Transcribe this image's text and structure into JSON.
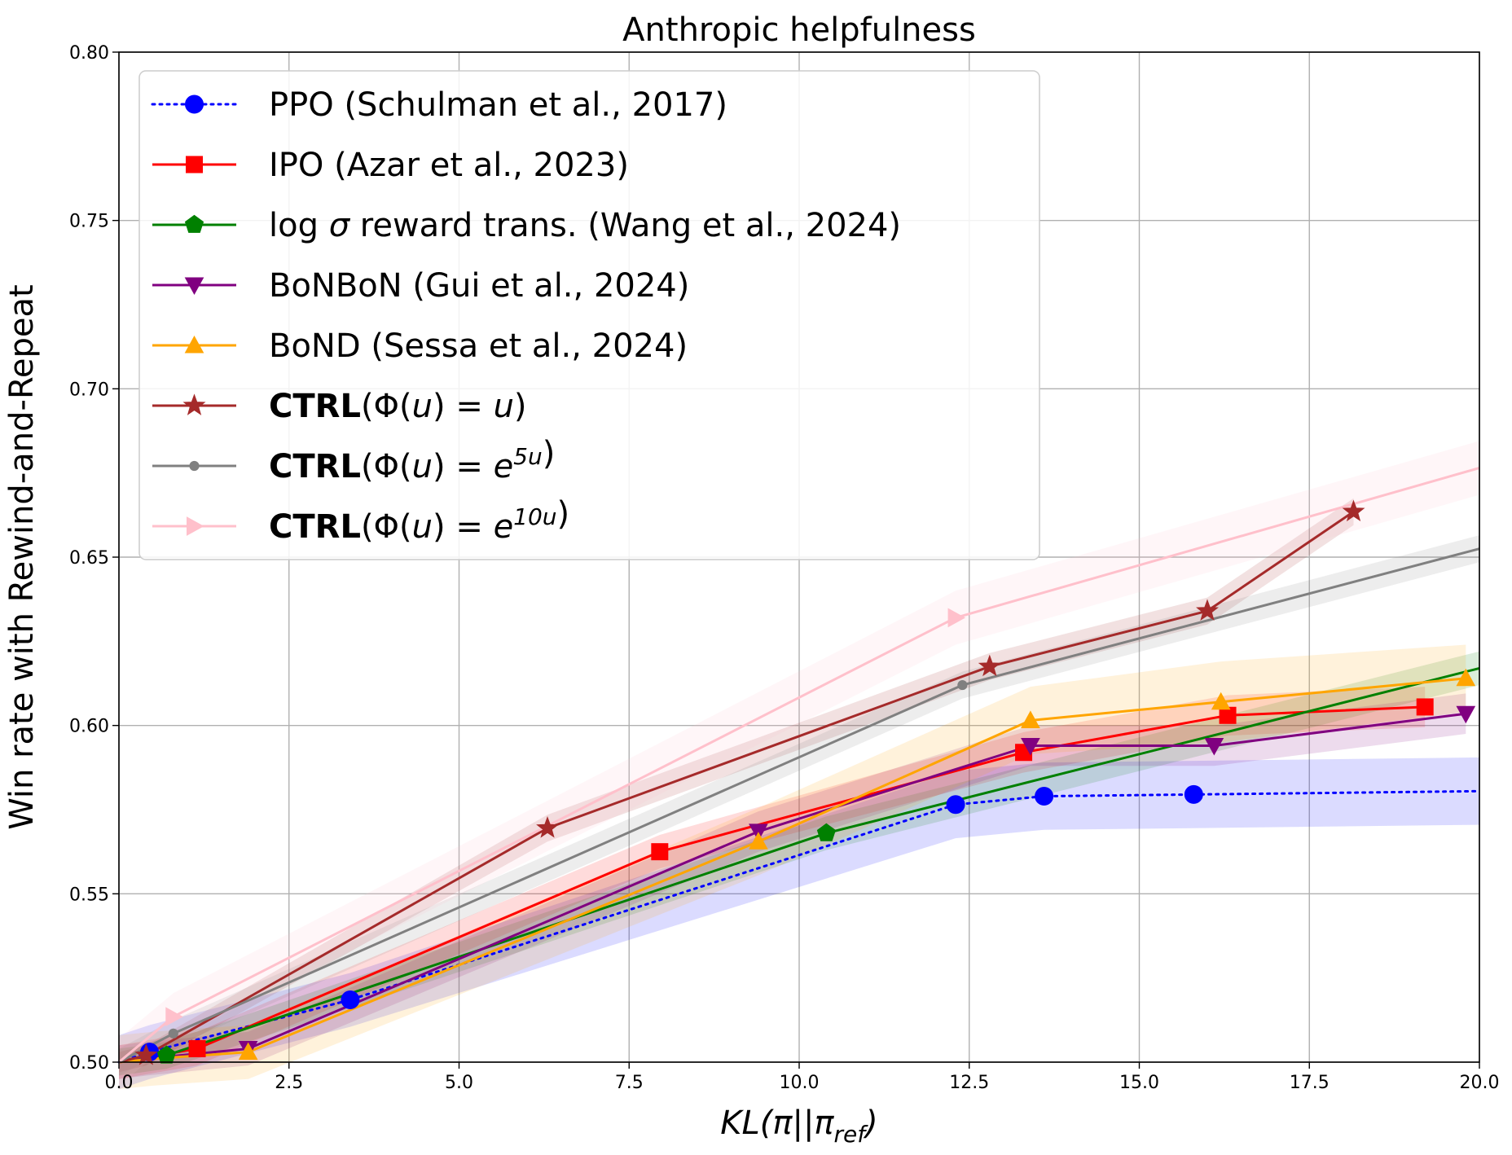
{
  "chart_data": {
    "type": "line",
    "title": "Anthropic helpfulness",
    "xlabel": "KL(π||π_ref)",
    "xlabel_main": "KL(π||π",
    "xlabel_sub": "ref",
    "xlabel_close": ")",
    "ylabel": "Win rate with Rewind-and-Repeat",
    "xlim": [
      0,
      20
    ],
    "ylim": [
      0.5,
      0.8
    ],
    "grid": true,
    "legend_position": "top-left",
    "xticks": [
      0,
      2.5,
      5,
      7.5,
      10,
      12.5,
      15,
      17.5,
      20
    ],
    "xtick_labels": [
      "0.0",
      "2.5",
      "5.0",
      "7.5",
      "10.0",
      "12.5",
      "15.0",
      "17.5",
      "20.0"
    ],
    "yticks": [
      0.5,
      0.55,
      0.6,
      0.65,
      0.7,
      0.75,
      0.8
    ],
    "ytick_labels": [
      "0.50",
      "0.55",
      "0.60",
      "0.65",
      "0.70",
      "0.75",
      "0.80"
    ],
    "series": [
      {
        "key": "ppo",
        "name": "PPO (Schulman et al., 2017)",
        "legend_parts": [
          {
            "t": "PPO (Schulman et al., 2017)"
          }
        ],
        "color": "#0000ff",
        "marker": "circle",
        "dashed": true,
        "x": [
          0,
          0.45,
          3.4,
          12.3,
          13.6,
          15.8,
          20
        ],
        "y": [
          0.5,
          0.503,
          0.5185,
          0.5765,
          0.579,
          0.5795,
          0.5805
        ],
        "band": [
          0.008,
          0.008,
          0.008,
          0.01,
          0.01,
          0.01,
          0.01
        ],
        "markers_at": [
          1,
          2,
          3,
          4,
          5
        ]
      },
      {
        "key": "ipo",
        "name": "IPO (Azar et al., 2023)",
        "legend_parts": [
          {
            "t": "IPO (Azar et al., 2023)"
          }
        ],
        "color": "#ff0000",
        "marker": "square",
        "dashed": false,
        "x": [
          0,
          1.15,
          7.95,
          13.3,
          16.3,
          19.2
        ],
        "y": [
          0.5,
          0.504,
          0.5625,
          0.592,
          0.603,
          0.6055
        ],
        "band": [
          0.005,
          0.005,
          0.005,
          0.006,
          0.006,
          0.006
        ],
        "markers_at": [
          1,
          2,
          3,
          4,
          5
        ]
      },
      {
        "key": "logsigma",
        "name": "log σ reward trans. (Wang et al., 2024)",
        "legend_parts": [
          {
            "t": "log "
          },
          {
            "t": "σ",
            "i": true
          },
          {
            "t": " reward trans. (Wang et al., 2024)"
          }
        ],
        "color": "#008000",
        "marker": "pentagon",
        "dashed": false,
        "x": [
          0,
          0.7,
          10.4,
          20
        ],
        "y": [
          0.5,
          0.502,
          0.568,
          0.617
        ],
        "band": [
          0.004,
          0.004,
          0.005,
          0.005
        ],
        "markers_at": [
          1,
          2
        ]
      },
      {
        "key": "bonbon",
        "name": "BoNBoN (Gui et al., 2024)",
        "legend_parts": [
          {
            "t": "BoNBoN (Gui et al., 2024)"
          }
        ],
        "color": "#800080",
        "marker": "triangle-down",
        "dashed": false,
        "x": [
          0,
          0.4,
          1.9,
          9.4,
          13.4,
          16.1,
          19.8
        ],
        "y": [
          0.5,
          0.501,
          0.504,
          0.5685,
          0.594,
          0.594,
          0.6035
        ],
        "band": [
          0.005,
          0.005,
          0.005,
          0.006,
          0.006,
          0.006,
          0.006
        ],
        "markers_at": [
          2,
          3,
          4,
          5,
          6
        ]
      },
      {
        "key": "bond",
        "name": "BoND (Sessa et al., 2024)",
        "legend_parts": [
          {
            "t": "BoND (Sessa et al., 2024)"
          }
        ],
        "color": "#ffa500",
        "marker": "triangle-up",
        "dashed": false,
        "x": [
          0,
          0.5,
          1.9,
          9.4,
          13.4,
          16.2,
          19.8
        ],
        "y": [
          0.5,
          0.501,
          0.503,
          0.5655,
          0.6015,
          0.607,
          0.614
        ],
        "band": [
          0.008,
          0.008,
          0.008,
          0.01,
          0.01,
          0.012,
          0.01
        ],
        "markers_at": [
          2,
          3,
          4,
          5,
          6
        ]
      },
      {
        "key": "ctrl_u",
        "name": "CTRL(Φ(u) = u)",
        "legend_parts": [
          {
            "t": "CTRL",
            "b": true
          },
          {
            "t": "(Φ("
          },
          {
            "t": "u",
            "i": true
          },
          {
            "t": ") = "
          },
          {
            "t": "u",
            "i": true
          },
          {
            "t": ")"
          }
        ],
        "color": "#a52a2a",
        "marker": "star",
        "dashed": false,
        "x": [
          0,
          0.4,
          6.3,
          12.8,
          16,
          18.15
        ],
        "y": [
          0.5,
          0.502,
          0.5695,
          0.6175,
          0.634,
          0.6635
        ],
        "band": [
          0.003,
          0.003,
          0.004,
          0.004,
          0.004,
          0.004
        ],
        "markers_at": [
          1,
          2,
          3,
          4,
          5
        ]
      },
      {
        "key": "ctrl_e5",
        "name": "CTRL(Φ(u) = e^5u)",
        "legend_parts": [
          {
            "t": "CTRL",
            "b": true
          },
          {
            "t": "(Φ("
          },
          {
            "t": "u",
            "i": true
          },
          {
            "t": ") = "
          },
          {
            "t": "e",
            "i": true
          },
          {
            "t": "5u",
            "i": true,
            "sup": true
          },
          {
            "t": ")"
          }
        ],
        "color": "#808080",
        "marker": "dot",
        "dashed": false,
        "x": [
          0,
          0.8,
          12.4,
          20
        ],
        "y": [
          0.5,
          0.5085,
          0.612,
          0.6525
        ],
        "band": [
          0.004,
          0.004,
          0.004,
          0.004
        ],
        "markers_at": [
          1,
          2
        ]
      },
      {
        "key": "ctrl_e10",
        "name": "CTRL(Φ(u) = e^10u)",
        "legend_parts": [
          {
            "t": "CTRL",
            "b": true
          },
          {
            "t": "(Φ("
          },
          {
            "t": "u",
            "i": true
          },
          {
            "t": ") = "
          },
          {
            "t": "e",
            "i": true
          },
          {
            "t": "10u",
            "i": true,
            "sup": true
          },
          {
            "t": ")"
          }
        ],
        "color": "#ffc0cb",
        "marker": "triangle-right",
        "dashed": false,
        "x": [
          0,
          0.8,
          12.3,
          20
        ],
        "y": [
          0.5,
          0.5135,
          0.632,
          0.6765
        ],
        "band": [
          0.007,
          0.007,
          0.008,
          0.008
        ],
        "markers_at": [
          1,
          2
        ]
      }
    ]
  }
}
